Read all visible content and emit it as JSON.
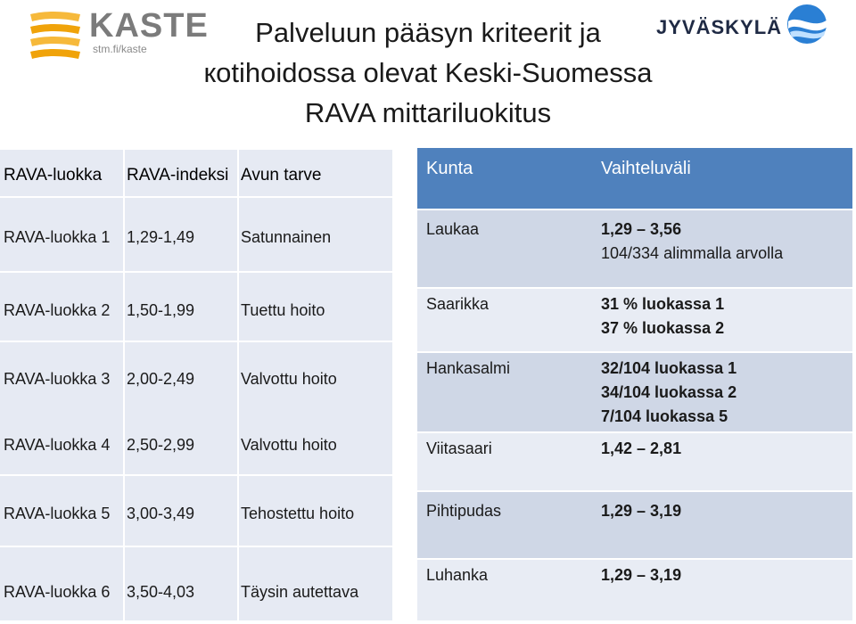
{
  "logos": {
    "kaste_word": "KASTE",
    "kaste_sub": "stm.fi/kaste",
    "jyvaskyla_word": "JYVÄSKYLÄ"
  },
  "title": {
    "line1": "Palveluun pääsyn kriteerit ja",
    "line2": "кotihoidossa olevat Keski-Suomessa",
    "line3": "RAVA mittariluokitus"
  },
  "left_table": {
    "headers": [
      "RAVA-luokka",
      "RAVA-indeksi",
      "Avun tarve"
    ],
    "rows": [
      [
        "RAVA-luokka 1",
        "1,29-1,49",
        "Satunnainen"
      ],
      [
        "RAVA-luokka 2",
        "1,50-1,99",
        "Tuettu hoito"
      ],
      [
        "RAVA-luokka 3",
        "2,00-2,49",
        "Valvottu hoito"
      ],
      [
        "RAVA-luokka 4",
        "2,50-2,99",
        "Valvottu hoito"
      ],
      [
        "RAVA-luokka 5",
        "3,00-3,49",
        "Tehostettu hoito"
      ],
      [
        "RAVA-luokka 6",
        "3,50-4,03",
        "Täysin autettava"
      ]
    ]
  },
  "right_table": {
    "headers": [
      "Kunta",
      "Vaihteluväli"
    ],
    "rows": [
      {
        "kunta": "Laukaa",
        "lines": [
          "1,29 – 3,56",
          "104/334 alimmalla arvolla"
        ]
      },
      {
        "kunta": "Saarikka",
        "lines": [
          "31 % luokassa 1",
          "37 % luokassa 2"
        ]
      },
      {
        "kunta": "Hankasalmi",
        "lines": [
          "32/104 luokassa 1",
          "34/104 luokassa 2",
          "7/104 luokassa 5"
        ]
      },
      {
        "kunta": "Viitasaari",
        "lines": [
          "1,42 – 2,81"
        ]
      },
      {
        "kunta": "Pihtipudas",
        "lines": [
          "1,29 – 3,19"
        ]
      },
      {
        "kunta": "Luhanka",
        "lines": [
          "1,29 – 3,19"
        ]
      }
    ]
  },
  "colors": {
    "header_blue": "#4f81bd",
    "row_dark": "#cfd7e6",
    "row_light": "#e8ecf4",
    "left_bg": "#e6eaf3"
  }
}
